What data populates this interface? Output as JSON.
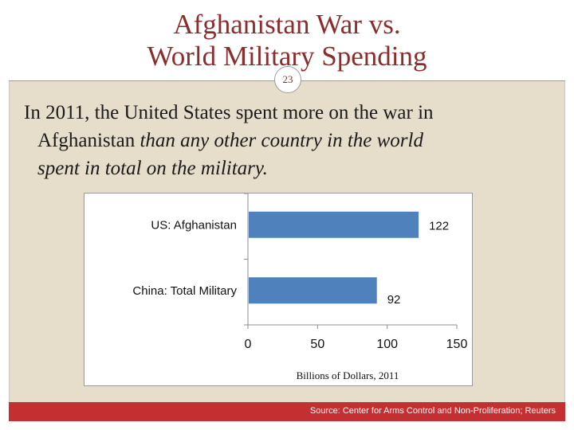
{
  "slide": {
    "title_line1": "Afghanistan War vs.",
    "title_line2": "World Military Spending",
    "slide_number": "23",
    "body_line1": "In 2011, the United States spent more on the war in",
    "body_line2_normal": "Afghanistan ",
    "body_line2_italic": "than any other country in the world",
    "body_line3_italic": "spent in total on the military.",
    "source": "Source: Center for Arms Control and Non-Proliferation; Reuters"
  },
  "colors": {
    "bar": "#4f81bd",
    "title": "#8b2d2d",
    "footer": "#c42f31"
  },
  "chart_data": {
    "type": "bar",
    "orientation": "horizontal",
    "categories": [
      "US: Afghanistan",
      "China: Total Military"
    ],
    "values": [
      122,
      92
    ],
    "value_labels": [
      "122",
      "92"
    ],
    "xlabel": "Billions of Dollars, 2011",
    "ylabel": "",
    "xlim": [
      0,
      150
    ],
    "ticks": [
      0,
      50,
      100,
      150
    ],
    "tick_labels": [
      "0",
      "50",
      "100",
      "150"
    ],
    "grid": false,
    "legend": "none"
  }
}
